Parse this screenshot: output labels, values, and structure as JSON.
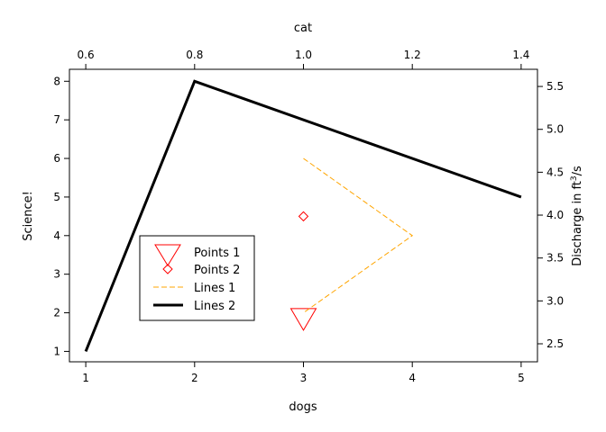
{
  "chart_data": {
    "type": "line",
    "title": "",
    "xlabel": "dogs",
    "ylabel": "Science!",
    "x2label": "cat",
    "y2label_prefix": "Discharge in ft",
    "y2label_sup": "3",
    "y2label_suffix": "/s",
    "xlim": [
      0.85,
      5.15
    ],
    "ylim": [
      0.73,
      8.31
    ],
    "x2lim": [
      0.57,
      1.43
    ],
    "y2lim": [
      2.29,
      5.7
    ],
    "x_ticks": [
      1,
      2,
      3,
      4,
      5
    ],
    "x_tick_labels": [
      "1",
      "2",
      "3",
      "4",
      "5"
    ],
    "y_ticks": [
      1,
      2,
      3,
      4,
      5,
      6,
      7,
      8
    ],
    "y_tick_labels": [
      "1",
      "2",
      "3",
      "4",
      "5",
      "6",
      "7",
      "8"
    ],
    "x2_ticks": [
      0.6,
      0.8,
      1.0,
      1.2,
      1.4
    ],
    "x2_tick_labels": [
      "0.6",
      "0.8",
      "1.0",
      "1.2",
      "1.4"
    ],
    "y2_ticks": [
      2.5,
      3.0,
      3.5,
      4.0,
      4.5,
      5.0,
      5.5
    ],
    "y2_tick_labels": [
      "2.5",
      "3.0",
      "3.5",
      "4.0",
      "4.5",
      "5.0",
      "5.5"
    ],
    "legend_position": "lower-left",
    "series": [
      {
        "name": "Points 1",
        "kind": "points",
        "marker": "triangle-down",
        "color": "#ff0000",
        "x": [
          3
        ],
        "y": [
          1.9
        ]
      },
      {
        "name": "Points 2",
        "kind": "points",
        "marker": "diamond",
        "color": "#ff0000",
        "x": [
          3
        ],
        "y": [
          4.5
        ]
      },
      {
        "name": "Lines 1",
        "kind": "line",
        "dash": "dashed",
        "color": "#ffa500",
        "x": [
          3,
          4,
          3
        ],
        "y": [
          6,
          4,
          2
        ]
      },
      {
        "name": "Lines 2",
        "kind": "line",
        "dash": "solid",
        "color": "#000000",
        "x": [
          1,
          2,
          5
        ],
        "y": [
          1,
          8,
          5
        ]
      }
    ]
  }
}
